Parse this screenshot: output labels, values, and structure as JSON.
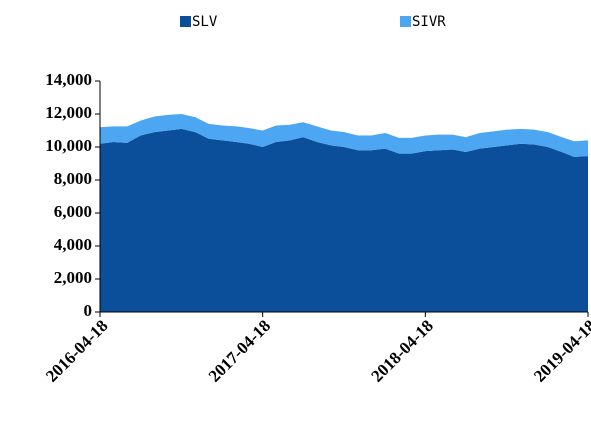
{
  "chart_data": {
    "type": "stacked-area",
    "x": [
      "2016-04-18",
      "2016-05-18",
      "2016-06-18",
      "2016-07-18",
      "2016-08-18",
      "2016-09-18",
      "2016-10-18",
      "2016-11-18",
      "2016-12-18",
      "2017-01-18",
      "2017-02-18",
      "2017-03-18",
      "2017-04-18",
      "2017-05-18",
      "2017-06-18",
      "2017-07-18",
      "2017-08-18",
      "2017-09-18",
      "2017-10-18",
      "2017-11-18",
      "2017-12-18",
      "2018-01-18",
      "2018-02-18",
      "2018-03-18",
      "2018-04-18",
      "2018-05-18",
      "2018-06-18",
      "2018-07-18",
      "2018-08-18",
      "2018-09-18",
      "2018-10-18",
      "2018-11-18",
      "2018-12-18",
      "2019-01-18",
      "2019-02-18",
      "2019-03-18",
      "2019-04-18"
    ],
    "series": [
      {
        "name": "SLV",
        "color": "#0b4f9a",
        "values": [
          10200,
          10300,
          10250,
          10700,
          10900,
          11000,
          11100,
          10900,
          10500,
          10400,
          10300,
          10200,
          10000,
          10300,
          10400,
          10600,
          10300,
          10100,
          10000,
          9800,
          9800,
          9900,
          9600,
          9600,
          9750,
          9800,
          9850,
          9700,
          9900,
          10000,
          10100,
          10200,
          10150,
          10000,
          9700,
          9400,
          9450
        ]
      },
      {
        "name": "SIVR",
        "color": "#4da6f2",
        "values": [
          1000,
          950,
          1000,
          900,
          950,
          950,
          900,
          900,
          900,
          900,
          950,
          950,
          1000,
          1000,
          950,
          900,
          950,
          900,
          900,
          900,
          900,
          950,
          950,
          950,
          950,
          950,
          900,
          900,
          950,
          950,
          950,
          900,
          900,
          900,
          900,
          950,
          950
        ]
      }
    ],
    "xlim": [
      "2016-04-18",
      "2019-04-18"
    ],
    "xticks": [
      "2016-04-18",
      "2017-04-18",
      "2018-04-18",
      "2019-04-18"
    ],
    "ylim": [
      0,
      14000
    ],
    "yticks": [
      0,
      {
        "value": 2000,
        "label": "2,000"
      },
      {
        "value": 4000,
        "label": "4,000"
      },
      {
        "value": 6000,
        "label": "6,000"
      },
      {
        "value": 8000,
        "label": "8,000"
      },
      {
        "value": 10000,
        "label": "10,000"
      },
      {
        "value": 12000,
        "label": "12,000"
      },
      {
        "value": 14000,
        "label": "14,000"
      }
    ],
    "legend": "top"
  }
}
